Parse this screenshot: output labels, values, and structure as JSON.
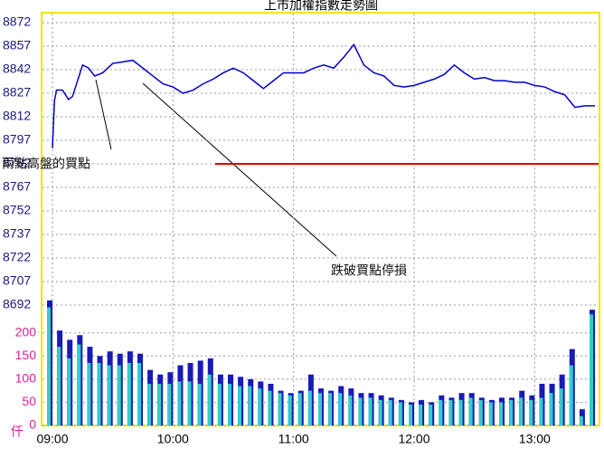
{
  "chart_data": [
    {
      "type": "line",
      "title": "上市加權指數走勢圖",
      "x": [
        "09:00",
        "09:01",
        "09:02",
        "09:05",
        "09:08",
        "09:10",
        "09:15",
        "09:18",
        "09:21",
        "09:25",
        "09:30",
        "09:35",
        "09:40",
        "09:45",
        "09:50",
        "09:55",
        "10:00",
        "10:05",
        "10:10",
        "10:15",
        "10:20",
        "10:25",
        "10:30",
        "10:35",
        "10:40",
        "10:45",
        "10:50",
        "10:55",
        "11:00",
        "11:05",
        "11:10",
        "11:15",
        "11:20",
        "11:25",
        "11:30",
        "11:35",
        "11:40",
        "11:45",
        "11:50",
        "11:55",
        "12:00",
        "12:05",
        "12:10",
        "12:15",
        "12:20",
        "12:25",
        "12:30",
        "12:35",
        "12:40",
        "12:45",
        "12:50",
        "12:55",
        "13:00",
        "13:05",
        "13:10",
        "13:15",
        "13:20",
        "13:25",
        "13:30"
      ],
      "series": [
        {
          "color": "#0000cc",
          "values": [
            8792,
            8822,
            8829,
            8829,
            8823,
            8825,
            8845,
            8843,
            8838,
            8840,
            8846,
            8847,
            8848,
            8843,
            8838,
            8833,
            8831,
            8827,
            8829,
            8833,
            8836,
            8840,
            8843,
            8840,
            8835,
            8830,
            8835,
            8840,
            8840,
            8840,
            8843,
            8845,
            8843,
            8850,
            8858,
            8845,
            8840,
            8838,
            8832,
            8831,
            8832,
            8834,
            8836,
            8839,
            8845,
            8840,
            8836,
            8837,
            8835,
            8835,
            8834,
            8834,
            8832,
            8831,
            8828,
            8826,
            8818,
            8819,
            8819
          ]
        }
      ],
      "xlim": [
        "09:00",
        "13:30"
      ],
      "ylim": [
        8692,
        8872
      ],
      "yticks": [
        8872,
        8857,
        8842,
        8827,
        8812,
        8797,
        8782,
        8767,
        8752,
        8737,
        8722,
        8707,
        8692
      ],
      "grid": true,
      "reference_line": {
        "value": 8782,
        "color": "#dd0000"
      },
      "annotations": [
        {
          "text": "兩點高盤的買點",
          "x": "09:15",
          "y": 8838
        },
        {
          "text": "跌破買點停損",
          "x": "09:40",
          "y": 8838
        }
      ]
    },
    {
      "type": "bar",
      "ylabel": "仟",
      "x": [
        "09:00",
        "09:05",
        "09:10",
        "09:15",
        "09:20",
        "09:25",
        "09:30",
        "09:35",
        "09:40",
        "09:45",
        "09:50",
        "09:55",
        "10:00",
        "10:05",
        "10:10",
        "10:15",
        "10:20",
        "10:25",
        "10:30",
        "10:35",
        "10:40",
        "10:45",
        "10:50",
        "10:55",
        "11:00",
        "11:05",
        "11:10",
        "11:15",
        "11:20",
        "11:25",
        "11:30",
        "11:35",
        "11:40",
        "11:45",
        "11:50",
        "11:55",
        "12:00",
        "12:05",
        "12:10",
        "12:15",
        "12:20",
        "12:25",
        "12:30",
        "12:35",
        "12:40",
        "12:45",
        "12:50",
        "12:55",
        "13:00",
        "13:05",
        "13:10",
        "13:15",
        "13:20",
        "13:25",
        "13:30"
      ],
      "series": [
        {
          "color": "#1a1ab8",
          "values": [
            270,
            205,
            185,
            195,
            170,
            150,
            160,
            155,
            160,
            155,
            120,
            110,
            115,
            130,
            135,
            140,
            145,
            110,
            110,
            105,
            100,
            95,
            90,
            75,
            70,
            75,
            110,
            80,
            75,
            85,
            80,
            70,
            70,
            65,
            60,
            55,
            50,
            55,
            50,
            65,
            60,
            70,
            70,
            60,
            55,
            60,
            60,
            75,
            65,
            90,
            90,
            110,
            165,
            35,
            250
          ]
        },
        {
          "color": "#33cccc",
          "values": [
            255,
            170,
            145,
            175,
            135,
            135,
            130,
            130,
            135,
            135,
            90,
            90,
            90,
            95,
            95,
            90,
            110,
            90,
            90,
            85,
            85,
            80,
            75,
            70,
            65,
            70,
            75,
            70,
            70,
            70,
            65,
            60,
            60,
            55,
            55,
            50,
            45,
            45,
            45,
            55,
            55,
            55,
            60,
            55,
            50,
            50,
            55,
            60,
            55,
            60,
            70,
            80,
            130,
            20,
            240
          ]
        }
      ],
      "xticks": [
        "09:00",
        "10:00",
        "11:00",
        "12:00",
        "13:00"
      ],
      "ylim": [
        0,
        260
      ],
      "yticks": [
        0,
        50,
        100,
        150,
        200
      ],
      "grid": true
    }
  ]
}
